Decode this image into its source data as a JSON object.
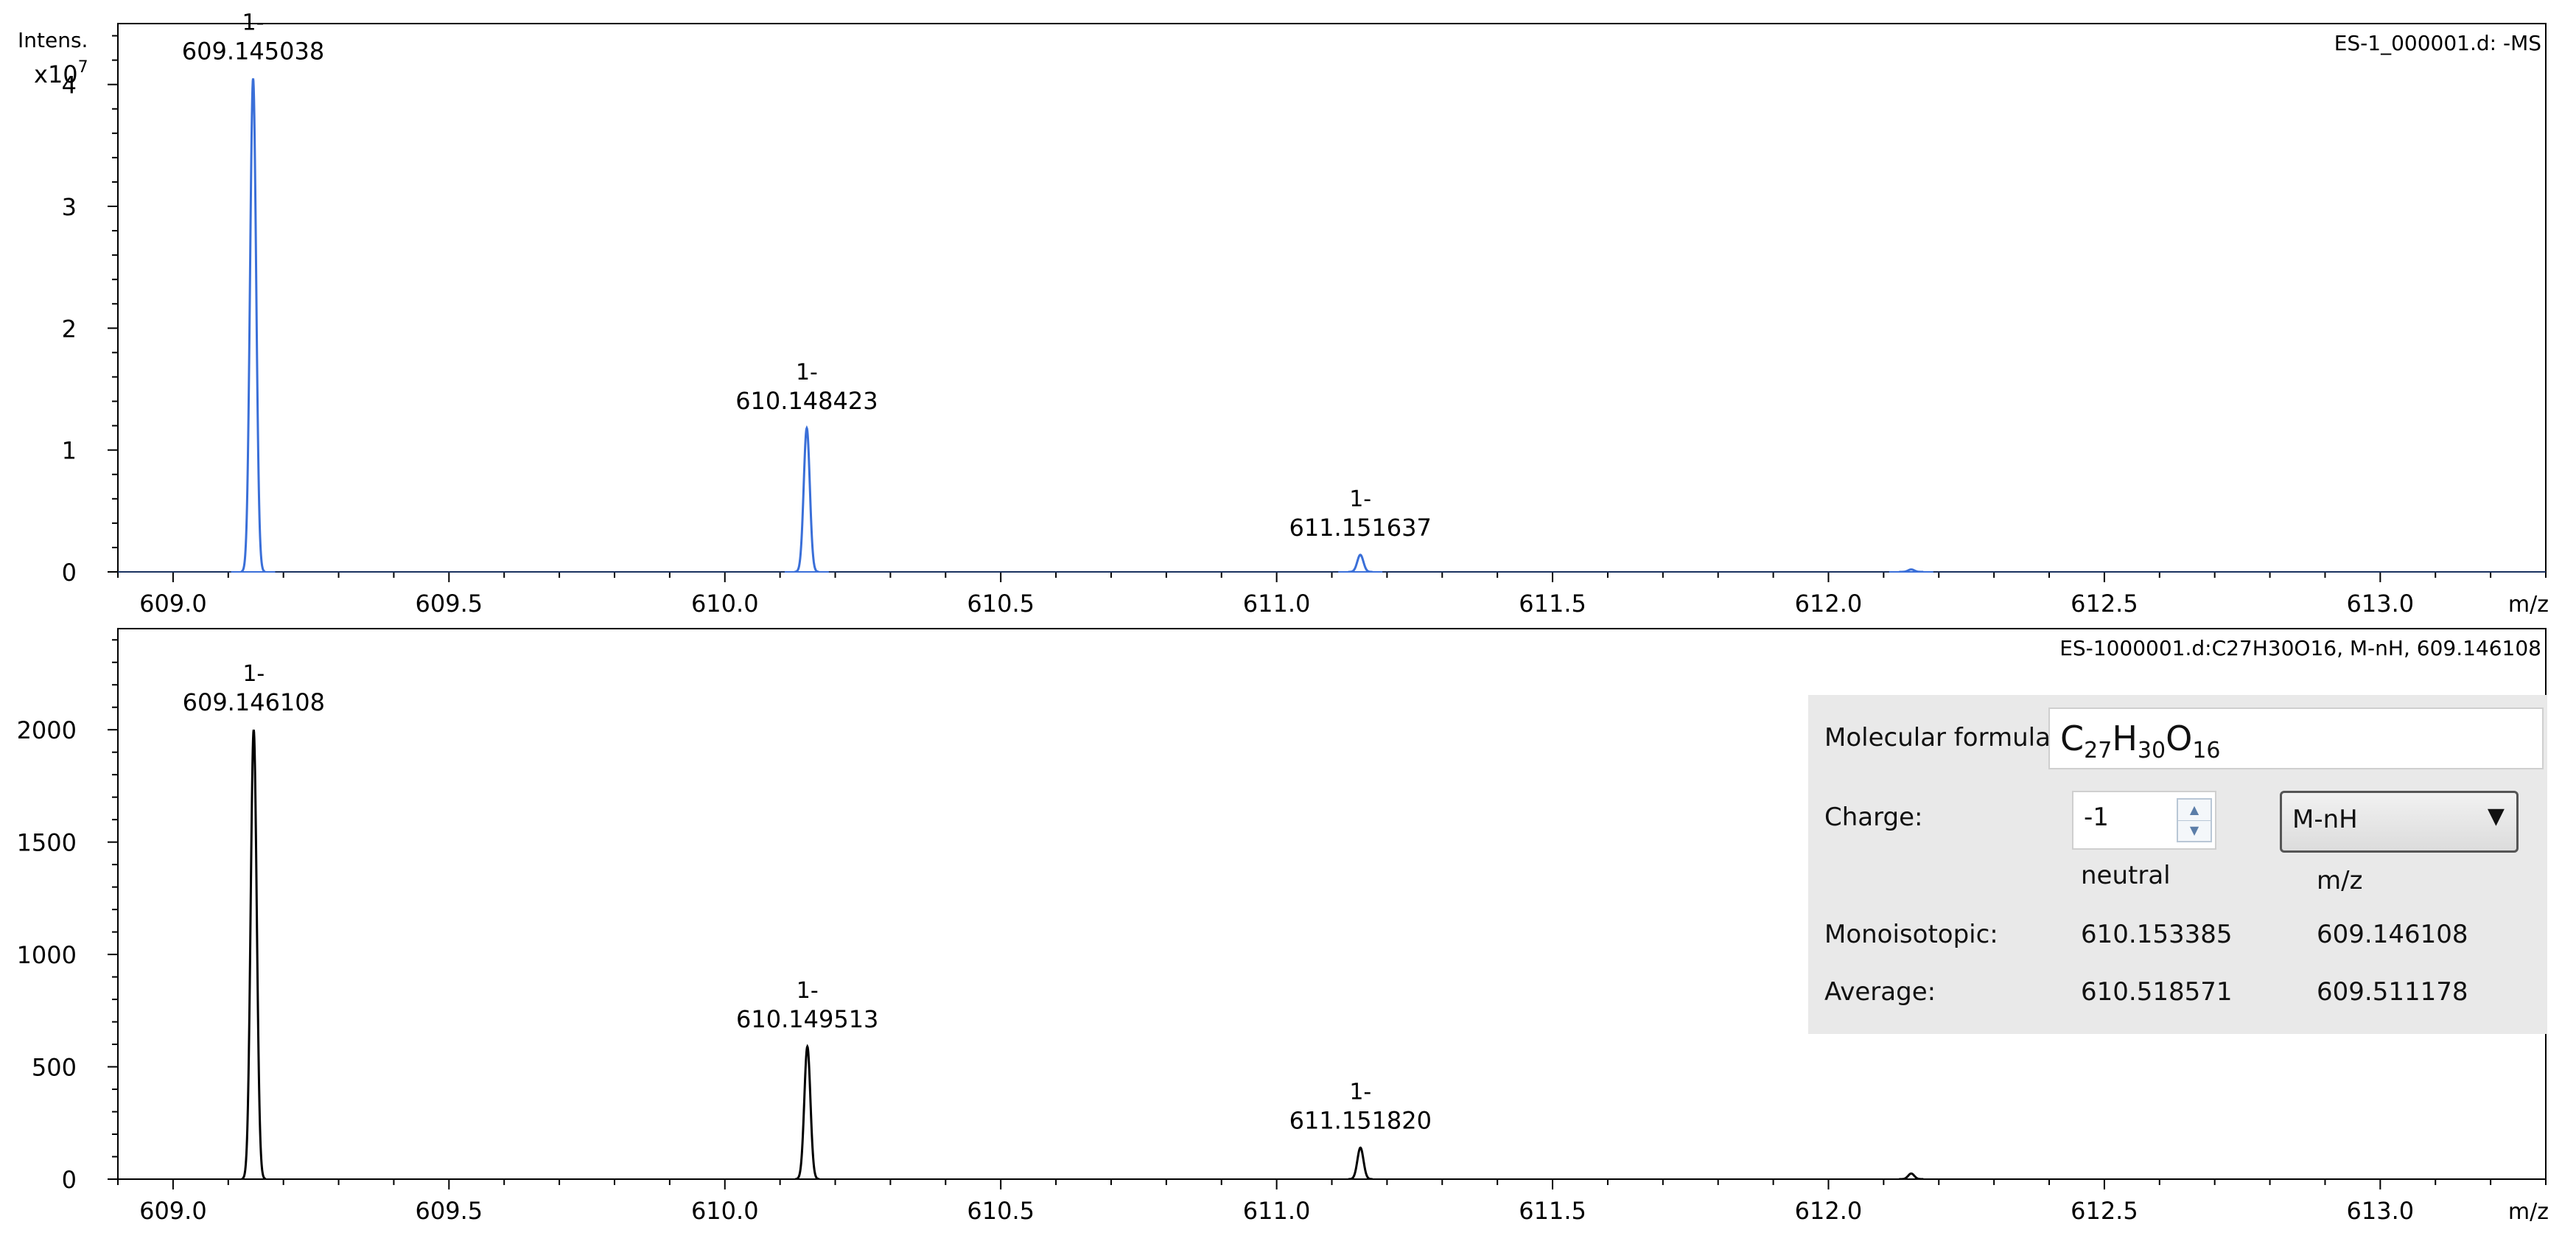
{
  "panels": [
    {
      "id": "top",
      "file_label": "ES-1_000001.d: -MS",
      "y_title": "Intens.",
      "y_multiplier": "x10",
      "y_multiplier_exp": "7",
      "x_unit": "m/z",
      "color": "#3a6fd8"
    },
    {
      "id": "bottom",
      "file_label": "ES-1000001.d:C27H30O16, M-nH, 609.146108",
      "x_unit": "m/z",
      "color": "#000000"
    }
  ],
  "info": {
    "molecular_formula_label": "Molecular formula:",
    "formula_c": "C",
    "formula_c_n": "27",
    "formula_h": "H",
    "formula_h_n": "30",
    "formula_o": "O",
    "formula_o_n": "16",
    "charge_label": "Charge:",
    "charge_value": "-1",
    "adduct_value": "M-nH",
    "col_neutral": "neutral",
    "col_mz": "m/z",
    "mono_label": "Monoisotopic:",
    "mono_neutral": "610.153385",
    "mono_mz": "609.146108",
    "avg_label": "Average:",
    "avg_neutral": "610.518571",
    "avg_mz": "609.511178"
  },
  "chart_data": [
    {
      "type": "line",
      "subtype": "mass-spectrum",
      "title": "ES-1_000001.d: -MS",
      "xlabel": "m/z",
      "ylabel": "Intens. x10^7",
      "xlim": [
        608.9,
        613.3
      ],
      "ylim": [
        0,
        4.5
      ],
      "x_ticks": [
        "609.0",
        "609.5",
        "610.0",
        "610.5",
        "611.0",
        "611.5",
        "612.0",
        "612.5",
        "613.0"
      ],
      "y_ticks": [
        "0",
        "1",
        "2",
        "3",
        "4"
      ],
      "peaks": [
        {
          "mz": 609.145038,
          "intensity": 4.05,
          "charge_label": "1-",
          "mz_label": "609.145038"
        },
        {
          "mz": 610.148423,
          "intensity": 1.18,
          "charge_label": "1-",
          "mz_label": "610.148423"
        },
        {
          "mz": 611.151637,
          "intensity": 0.14,
          "charge_label": "1-",
          "mz_label": "611.151637"
        },
        {
          "mz": 612.15,
          "intensity": 0.02
        }
      ]
    },
    {
      "type": "line",
      "subtype": "simulated-isotope-pattern",
      "title": "ES-1000001.d:C27H30O16, M-nH, 609.146108",
      "xlabel": "m/z",
      "xlim": [
        608.9,
        613.3
      ],
      "ylim": [
        0,
        2450
      ],
      "x_ticks": [
        "609.0",
        "609.5",
        "610.0",
        "610.5",
        "611.0",
        "611.5",
        "612.0",
        "612.5",
        "613.0"
      ],
      "y_ticks": [
        "0",
        "500",
        "1000",
        "1500",
        "2000"
      ],
      "peaks": [
        {
          "mz": 609.146108,
          "intensity": 2000,
          "charge_label": "1-",
          "mz_label": "609.146108"
        },
        {
          "mz": 610.149513,
          "intensity": 590,
          "charge_label": "1-",
          "mz_label": "610.149513"
        },
        {
          "mz": 611.15182,
          "intensity": 140,
          "charge_label": "1-",
          "mz_label": "611.151820"
        },
        {
          "mz": 612.15,
          "intensity": 25
        }
      ]
    }
  ]
}
